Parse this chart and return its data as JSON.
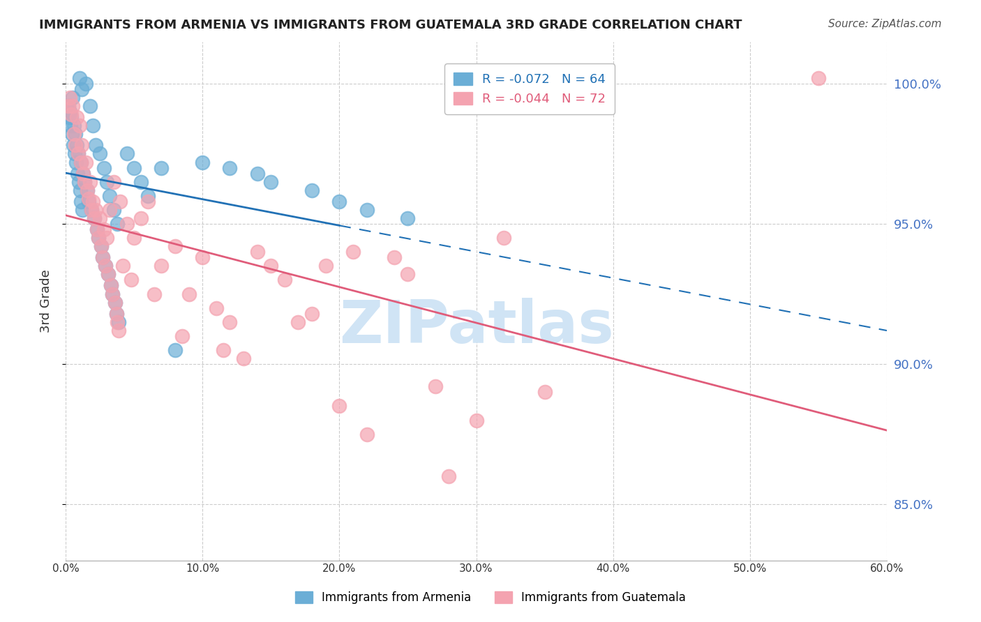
{
  "title": "IMMIGRANTS FROM ARMENIA VS IMMIGRANTS FROM GUATEMALA 3RD GRADE CORRELATION CHART",
  "source": "Source: ZipAtlas.com",
  "ylabel": "3rd Grade",
  "xlim": [
    0.0,
    60.0
  ],
  "ylim": [
    83.0,
    101.5
  ],
  "yticks": [
    85.0,
    90.0,
    95.0,
    100.0
  ],
  "ytick_labels": [
    "85.0%",
    "90.0%",
    "95.0%",
    "100.0%"
  ],
  "xticks": [
    0,
    10,
    20,
    30,
    40,
    50,
    60
  ],
  "xtick_labels": [
    "0.0%",
    "10.0%",
    "20.0%",
    "30.0%",
    "40.0%",
    "50.0%",
    "60.0%"
  ],
  "legend_armenia": "R = -0.072   N = 64",
  "legend_guatemala": "R = -0.044   N = 72",
  "armenia_color": "#6baed6",
  "armenia_line_color": "#2171b5",
  "guatemala_color": "#f4a3b0",
  "guatemala_line_color": "#e05c7a",
  "watermark": "ZIPatlas",
  "watermark_color": "#d0e4f5",
  "background_color": "#ffffff",
  "grid_color": "#cccccc",
  "right_axis_color": "#4472c4",
  "armenia_scatter_x": [
    0.5,
    1.0,
    1.2,
    1.5,
    1.8,
    2.0,
    2.2,
    2.5,
    2.8,
    3.0,
    3.2,
    3.5,
    3.8,
    0.3,
    0.4,
    0.6,
    0.7,
    0.8,
    0.9,
    1.1,
    1.3,
    1.4,
    1.6,
    1.7,
    1.9,
    2.1,
    2.3,
    2.4,
    2.6,
    2.7,
    2.9,
    3.1,
    3.3,
    3.4,
    3.6,
    3.7,
    3.9,
    4.5,
    5.0,
    5.5,
    6.0,
    7.0,
    8.0,
    10.0,
    12.0,
    14.0,
    15.0,
    18.0,
    20.0,
    22.0,
    25.0,
    0.2,
    0.15,
    0.25,
    0.35,
    0.45,
    0.55,
    0.65,
    0.75,
    0.85,
    0.95,
    1.05,
    1.15,
    1.25
  ],
  "armenia_scatter_y": [
    99.5,
    100.2,
    99.8,
    100.0,
    99.2,
    98.5,
    97.8,
    97.5,
    97.0,
    96.5,
    96.0,
    95.5,
    95.0,
    99.0,
    98.8,
    98.5,
    98.2,
    97.8,
    97.5,
    97.2,
    96.8,
    96.5,
    96.2,
    95.8,
    95.5,
    95.2,
    94.8,
    94.5,
    94.2,
    93.8,
    93.5,
    93.2,
    92.8,
    92.5,
    92.2,
    91.8,
    91.5,
    97.5,
    97.0,
    96.5,
    96.0,
    97.0,
    90.5,
    97.2,
    97.0,
    96.8,
    96.5,
    96.2,
    95.8,
    95.5,
    95.2,
    99.2,
    99.0,
    98.8,
    98.5,
    98.2,
    97.8,
    97.5,
    97.2,
    96.8,
    96.5,
    96.2,
    95.8,
    95.5
  ],
  "guatemala_scatter_x": [
    0.3,
    0.5,
    0.8,
    1.0,
    1.2,
    1.5,
    1.8,
    2.0,
    2.2,
    2.5,
    2.8,
    3.0,
    3.5,
    4.0,
    4.5,
    5.0,
    5.5,
    6.0,
    7.0,
    8.0,
    9.0,
    10.0,
    11.0,
    12.0,
    14.0,
    15.0,
    16.0,
    18.0,
    20.0,
    22.0,
    25.0,
    28.0,
    30.0,
    35.0,
    0.2,
    0.4,
    0.6,
    0.7,
    0.9,
    1.1,
    1.3,
    1.4,
    1.6,
    1.7,
    1.9,
    2.1,
    2.3,
    2.4,
    2.6,
    2.7,
    2.9,
    3.1,
    3.2,
    3.3,
    3.4,
    3.6,
    3.7,
    3.8,
    3.9,
    4.2,
    4.8,
    6.5,
    8.5,
    11.5,
    13.0,
    17.0,
    19.0,
    21.0,
    24.0,
    27.0,
    32.0,
    55.0
  ],
  "guatemala_scatter_y": [
    99.5,
    99.2,
    98.8,
    98.5,
    97.8,
    97.2,
    96.5,
    95.8,
    95.5,
    95.2,
    94.8,
    94.5,
    96.5,
    95.8,
    95.0,
    94.5,
    95.2,
    95.8,
    93.5,
    94.2,
    92.5,
    93.8,
    92.0,
    91.5,
    94.0,
    93.5,
    93.0,
    91.8,
    88.5,
    87.5,
    93.2,
    86.0,
    88.0,
    89.0,
    99.2,
    98.9,
    98.2,
    97.8,
    97.5,
    97.2,
    96.8,
    96.5,
    96.2,
    95.9,
    95.5,
    95.2,
    94.8,
    94.5,
    94.2,
    93.8,
    93.5,
    93.2,
    95.5,
    92.8,
    92.5,
    92.2,
    91.8,
    91.5,
    91.2,
    93.5,
    93.0,
    92.5,
    91.0,
    90.5,
    90.2,
    91.5,
    93.5,
    94.0,
    93.8,
    89.2,
    94.5,
    100.2
  ],
  "solid_end_x": 20.0,
  "bottom_legend_armenia": "Immigrants from Armenia",
  "bottom_legend_guatemala": "Immigrants from Guatemala"
}
